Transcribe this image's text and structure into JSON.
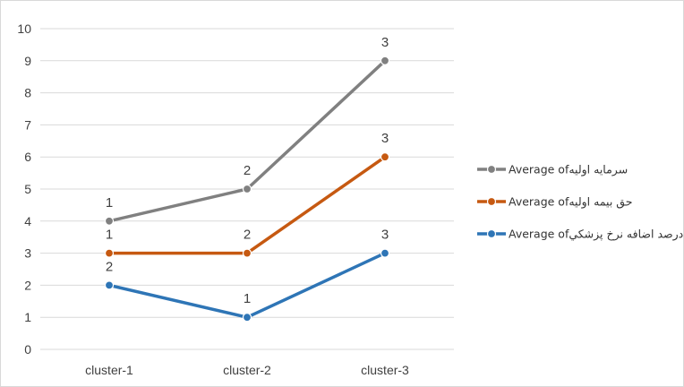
{
  "chart_data": {
    "type": "line",
    "categories": [
      "cluster-1",
      "cluster-2",
      "cluster-3"
    ],
    "ylim": [
      0,
      10
    ],
    "yticks": [
      0,
      1,
      2,
      3,
      4,
      5,
      6,
      7,
      8,
      9,
      10
    ],
    "grid": true,
    "legend_position": "right",
    "series": [
      {
        "name": "Average ofسرمايه اوليه",
        "values": [
          4,
          5,
          9
        ],
        "labels": [
          "1",
          "2",
          "3"
        ],
        "color": "#808080"
      },
      {
        "name": "Average ofحق بيمه اوليه",
        "values": [
          3,
          3,
          6
        ],
        "labels": [
          "1",
          "2",
          "3"
        ],
        "color": "#c65911"
      },
      {
        "name": "Average ofدرصد اضافه نرخ پزشكي",
        "values": [
          2,
          1,
          3
        ],
        "labels": [
          "2",
          "1",
          "3"
        ],
        "color": "#2e75b6"
      }
    ]
  }
}
